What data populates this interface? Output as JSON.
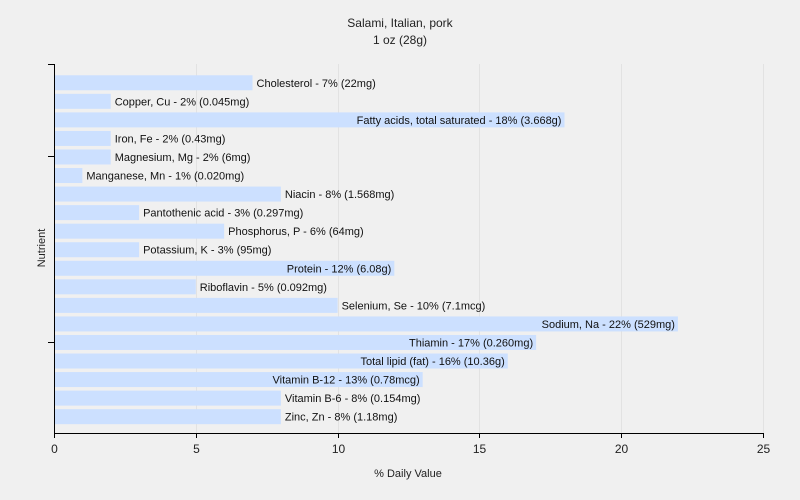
{
  "chart_data": {
    "type": "bar",
    "orientation": "horizontal",
    "title": "Salami, Italian, pork",
    "subtitle": "1 oz (28g)",
    "xlabel": "% Daily Value",
    "ylabel": "Nutrient",
    "xlim": [
      0,
      25
    ],
    "xticks": [
      0,
      5,
      10,
      15,
      20,
      25
    ],
    "grid": "vertical",
    "bar_color": "#cce0ff",
    "categories": [
      "Cholesterol",
      "Copper, Cu",
      "Fatty acids, total saturated",
      "Iron, Fe",
      "Magnesium, Mg",
      "Manganese, Mn",
      "Niacin",
      "Pantothenic acid",
      "Phosphorus, P",
      "Potassium, K",
      "Protein",
      "Riboflavin",
      "Selenium, Se",
      "Sodium, Na",
      "Thiamin",
      "Total lipid (fat)",
      "Vitamin B-12",
      "Vitamin B-6",
      "Zinc, Zn"
    ],
    "values": [
      7,
      2,
      18,
      2,
      2,
      1,
      8,
      3,
      6,
      3,
      12,
      5,
      10,
      22,
      17,
      16,
      13,
      8,
      8
    ],
    "labels": [
      "Cholesterol - 7% (22mg)",
      "Copper, Cu - 2% (0.045mg)",
      "Fatty acids, total saturated - 18% (3.668g)",
      "Iron, Fe - 2% (0.43mg)",
      "Magnesium, Mg - 2% (6mg)",
      "Manganese, Mn - 1% (0.020mg)",
      "Niacin - 8% (1.568mg)",
      "Pantothenic acid - 3% (0.297mg)",
      "Phosphorus, P - 6% (64mg)",
      "Potassium, K - 3% (95mg)",
      "Protein - 12% (6.08g)",
      "Riboflavin - 5% (0.092mg)",
      "Selenium, Se - 10% (7.1mcg)",
      "Sodium, Na - 22% (529mg)",
      "Thiamin - 17% (0.260mg)",
      "Total lipid (fat) - 16% (10.36g)",
      "Vitamin B-12 - 13% (0.78mcg)",
      "Vitamin B-6 - 8% (0.154mg)",
      "Zinc, Zn - 8% (1.18mg)"
    ]
  }
}
